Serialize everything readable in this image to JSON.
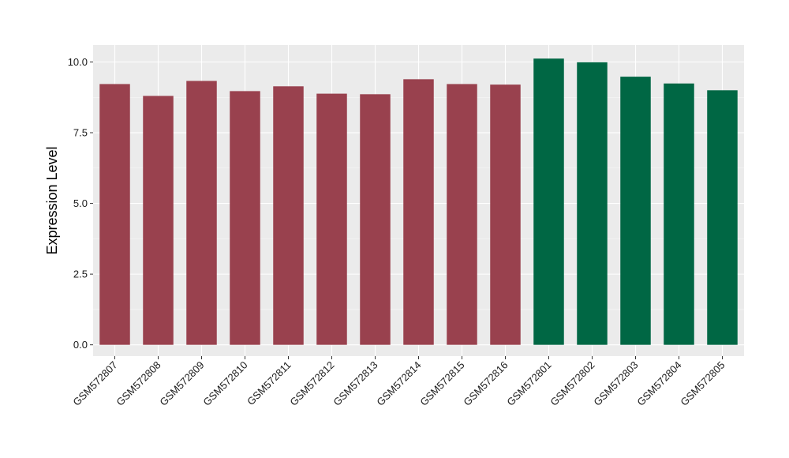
{
  "chart_data": {
    "type": "bar",
    "title": "",
    "xlabel": "",
    "ylabel": "Expression Level",
    "ylim": [
      -0.4,
      10.6
    ],
    "yticks": [
      0.0,
      2.5,
      5.0,
      7.5,
      10.0
    ],
    "ytick_labels": [
      "0.0",
      "2.5",
      "5.0",
      "7.5",
      "10.0"
    ],
    "grid": true,
    "legend": "none",
    "background": "#EBEBEB",
    "categories": [
      "GSM572807",
      "GSM572808",
      "GSM572809",
      "GSM572810",
      "GSM572811",
      "GSM572812",
      "GSM572813",
      "GSM572814",
      "GSM572815",
      "GSM572816",
      "GSM572801",
      "GSM572802",
      "GSM572803",
      "GSM572804",
      "GSM572805"
    ],
    "values": [
      9.22,
      8.8,
      9.33,
      8.97,
      9.14,
      8.88,
      8.86,
      9.39,
      9.22,
      9.2,
      10.12,
      9.99,
      9.48,
      9.24,
      9.0
    ],
    "colors": [
      "#99414E",
      "#99414E",
      "#99414E",
      "#99414E",
      "#99414E",
      "#99414E",
      "#99414E",
      "#99414E",
      "#99414E",
      "#99414E",
      "#006744",
      "#006744",
      "#006744",
      "#006744",
      "#006744"
    ]
  }
}
